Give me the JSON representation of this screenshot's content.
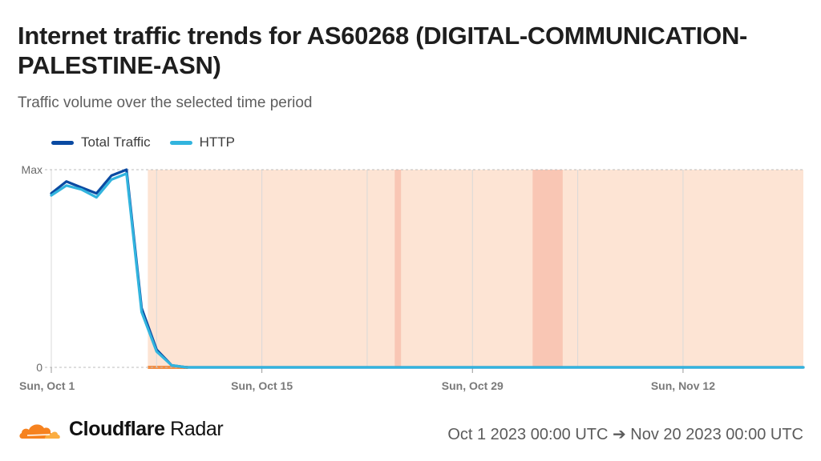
{
  "title": "Internet traffic trends for AS60268 (DIGITAL-COMMUNICATION-PALESTINE-ASN)",
  "subtitle": "Traffic volume over the selected time period",
  "brand": {
    "name_bold": "Cloudflare",
    "name_regular": "Radar",
    "logo_icon": "cloudflare-cloud-icon"
  },
  "date_range": "Oct 1 2023 00:00 UTC ➔ Nov 20 2023 00:00 UTC",
  "colors": {
    "total": "#0a4aa2",
    "http": "#32b4de",
    "outage_band": "#fde4d4",
    "outage_strong": "#f9c6b4",
    "outage_marker": "#f28f45",
    "grid": "#d9d9d9",
    "brand_orange": "#f6821f",
    "brand_orange_light": "#fbad41"
  },
  "chart_data": {
    "type": "line",
    "x_start": "2023-10-01",
    "x_end": "2023-11-20",
    "ylim": [
      0,
      1
    ],
    "y_tick_labels": [
      "0",
      "Max"
    ],
    "x_tick_labels": [
      "Sun, Oct 1",
      "Sun, Oct 15",
      "Sun, Oct 29",
      "Sun, Nov 12"
    ],
    "x_tick_dates": [
      "2023-10-01",
      "2023-10-15",
      "2023-10-29",
      "2023-11-12"
    ],
    "minor_grid_dates": [
      "2023-10-08",
      "2023-10-22",
      "2023-11-05"
    ],
    "legend_position": "top-left",
    "x": [
      "2023-10-01",
      "2023-10-02",
      "2023-10-03",
      "2023-10-04",
      "2023-10-05",
      "2023-10-06",
      "2023-10-07",
      "2023-10-08",
      "2023-10-09",
      "2023-10-10",
      "2023-11-20"
    ],
    "series": [
      {
        "name": "Total Traffic",
        "values": [
          0.88,
          0.94,
          0.91,
          0.88,
          0.97,
          1.0,
          0.3,
          0.09,
          0.01,
          0.0,
          0.0
        ]
      },
      {
        "name": "HTTP",
        "values": [
          0.87,
          0.92,
          0.9,
          0.86,
          0.95,
          0.98,
          0.28,
          0.08,
          0.01,
          0.0,
          0.0
        ]
      }
    ],
    "outage_regions": [
      {
        "start": "2023-10-07 10:00",
        "end": "2023-11-20 00:00",
        "kind": "band"
      },
      {
        "start": "2023-10-23 20:00",
        "end": "2023-10-24 06:00",
        "kind": "strong"
      },
      {
        "start": "2023-11-02 00:00",
        "end": "2023-11-04 00:00",
        "kind": "strong"
      }
    ]
  }
}
